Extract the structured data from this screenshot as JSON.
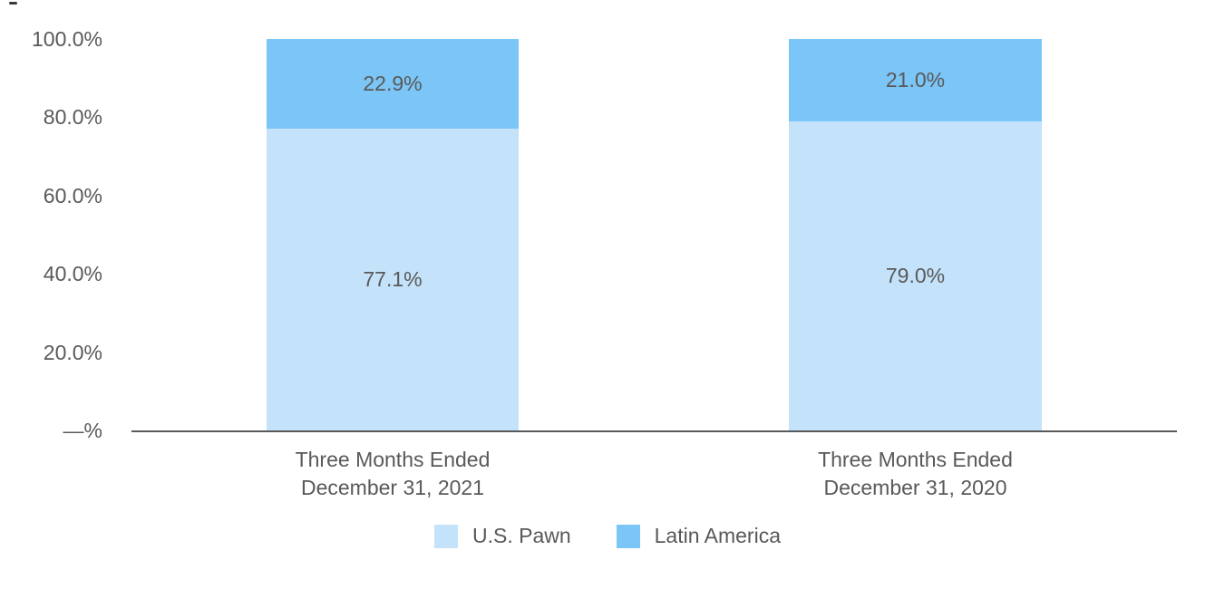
{
  "chart_data": {
    "type": "bar",
    "stacked": true,
    "title": "",
    "categories": [
      {
        "line1": "Three Months Ended",
        "line2": "December 31, 2021"
      },
      {
        "line1": "Three Months Ended",
        "line2": "December 31, 2020"
      }
    ],
    "series": [
      {
        "name": "U.S. Pawn",
        "color": "#C4E3FA",
        "values": [
          77.1,
          79.0
        ],
        "data_labels": [
          "77.1%",
          "79.0%"
        ]
      },
      {
        "name": "Latin America",
        "color": "#7CC5F7",
        "values": [
          22.9,
          21.0
        ],
        "data_labels": [
          "22.9%",
          "21.0%"
        ]
      }
    ],
    "y_axis": {
      "ticks_top_to_bottom": [
        "100.0%",
        "80.0%",
        "60.0%",
        "40.0%",
        "20.0%",
        "—%"
      ],
      "range": [
        0,
        100
      ],
      "gridlines": false
    },
    "legend": {
      "position": "bottom",
      "entries": [
        "U.S. Pawn",
        "Latin America"
      ]
    },
    "colors": {
      "text": "#595959",
      "axis_line": "#595959",
      "background": "#FFFFFF"
    }
  }
}
